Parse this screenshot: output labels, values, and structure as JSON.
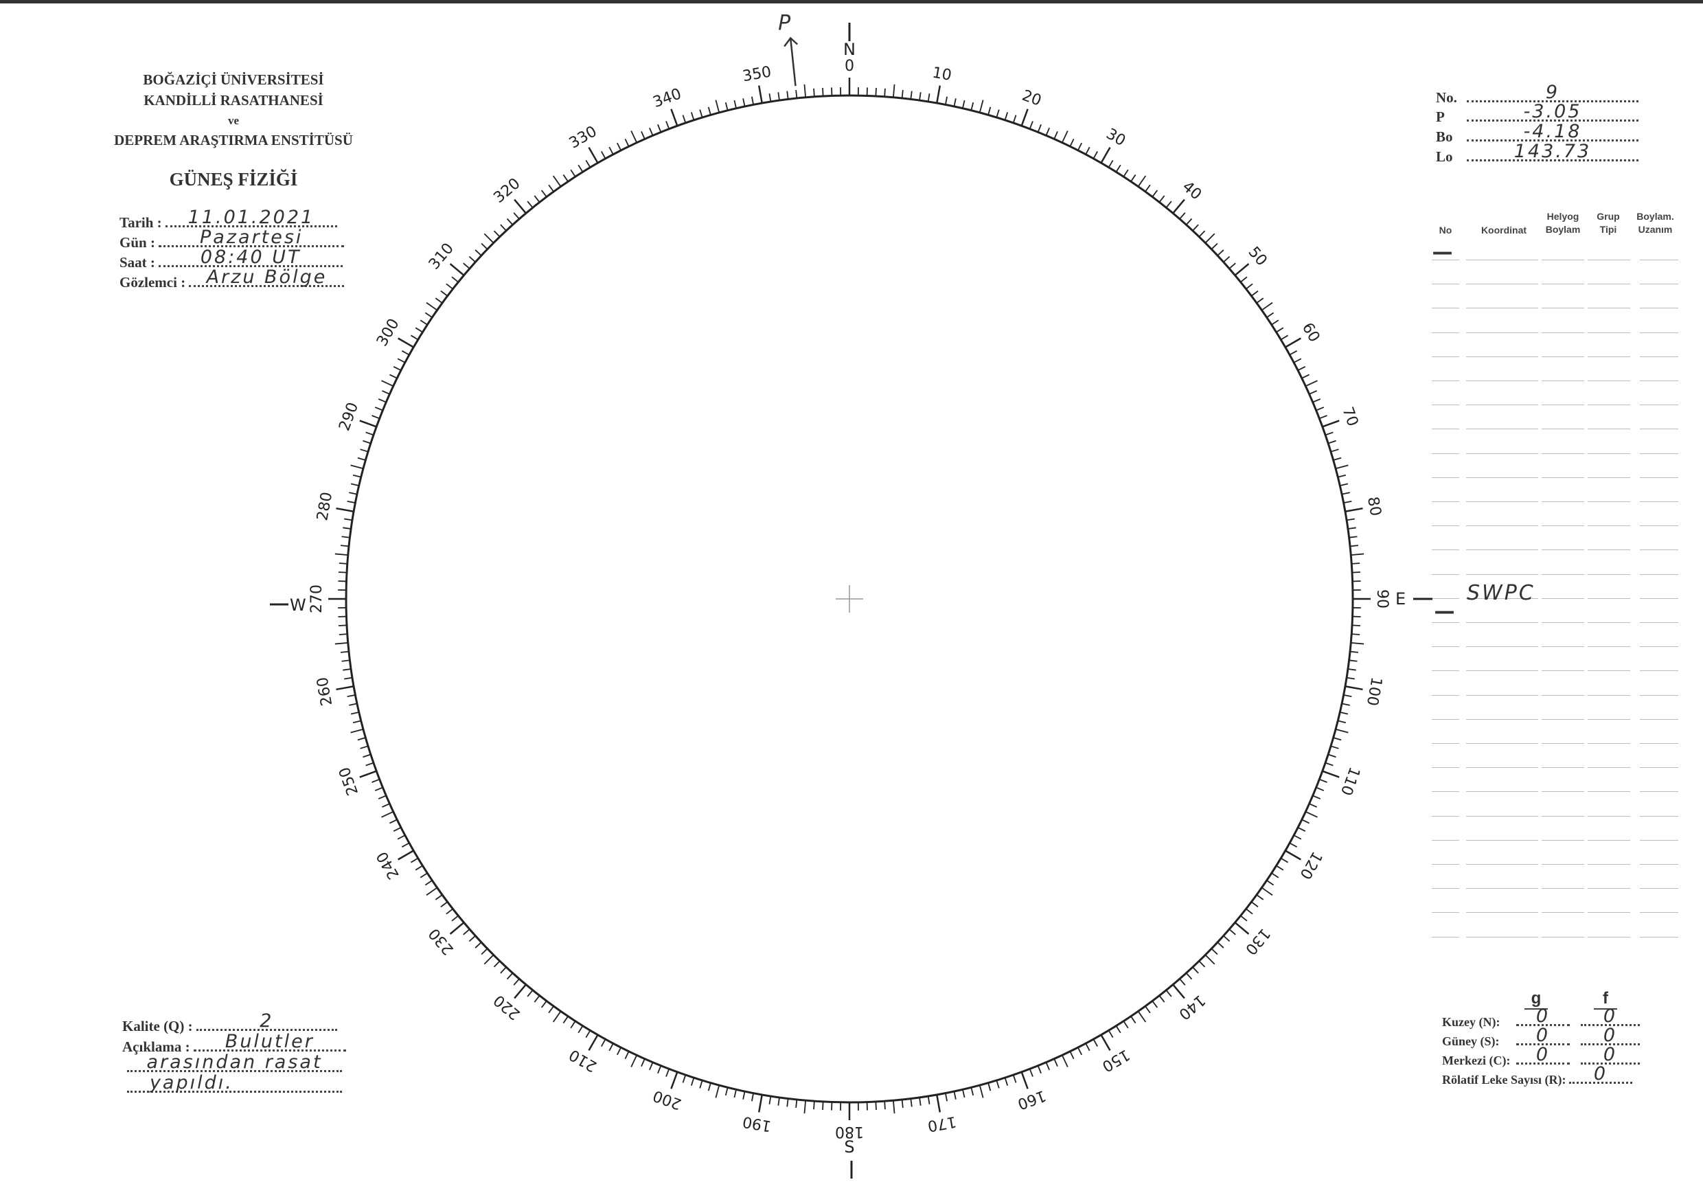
{
  "header": {
    "line1": "BOĞAZİÇİ ÜNİVERSİTESİ",
    "line2": "KANDİLLİ RASATHANESİ",
    "line3": "ve",
    "line4": "DEPREM ARAŞTIRMA ENSTİTÜSÜ",
    "title": "GÜNEŞ FİZİĞİ"
  },
  "observation": {
    "date_label": "Tarih :",
    "date_value": "11.01.2021",
    "day_label": "Gün :",
    "day_value": "Pazartesi",
    "time_label": "Saat :",
    "time_value": "08:40 UT",
    "observer_label": "Gözlemci :",
    "observer_value": "Arzu Bölge"
  },
  "params": {
    "no_label": "No.",
    "no_value": "9",
    "p_label": "P",
    "p_value": "-3.05",
    "bo_label": "Bo",
    "bo_value": "-4.18",
    "lo_label": "Lo",
    "lo_value": "143.73"
  },
  "table": {
    "headers": [
      "No",
      "Koordinat",
      "Helyog Boylam",
      "Grup Tipi",
      "Boylam. Uzanım"
    ],
    "first_row_no": "—",
    "swpc_note": "SWPC",
    "swpc_dash": "—"
  },
  "compass": {
    "north": "N",
    "south": "S",
    "east": "E",
    "west": "W",
    "p_marker": "P",
    "p_angle_deg": 354
  },
  "quality": {
    "kalite_label": "Kalite (Q) :",
    "kalite_value": "2",
    "aciklama_label": "Açıklama :",
    "aciklama_line1": "Bulutler",
    "aciklama_line2": "arasından rasat",
    "aciklama_line3": "yapıldı."
  },
  "counts": {
    "g_header": "g",
    "f_header": "f",
    "north_label": "Kuzey (N):",
    "north_g": "0",
    "north_f": "0",
    "south_label": "Güney (S):",
    "south_g": "0",
    "south_f": "0",
    "center_label": "Merkezi (C):",
    "center_g": "0",
    "center_f": "0",
    "r_label": "Rölatif Leke Sayısı (R):",
    "r_value": "0"
  }
}
